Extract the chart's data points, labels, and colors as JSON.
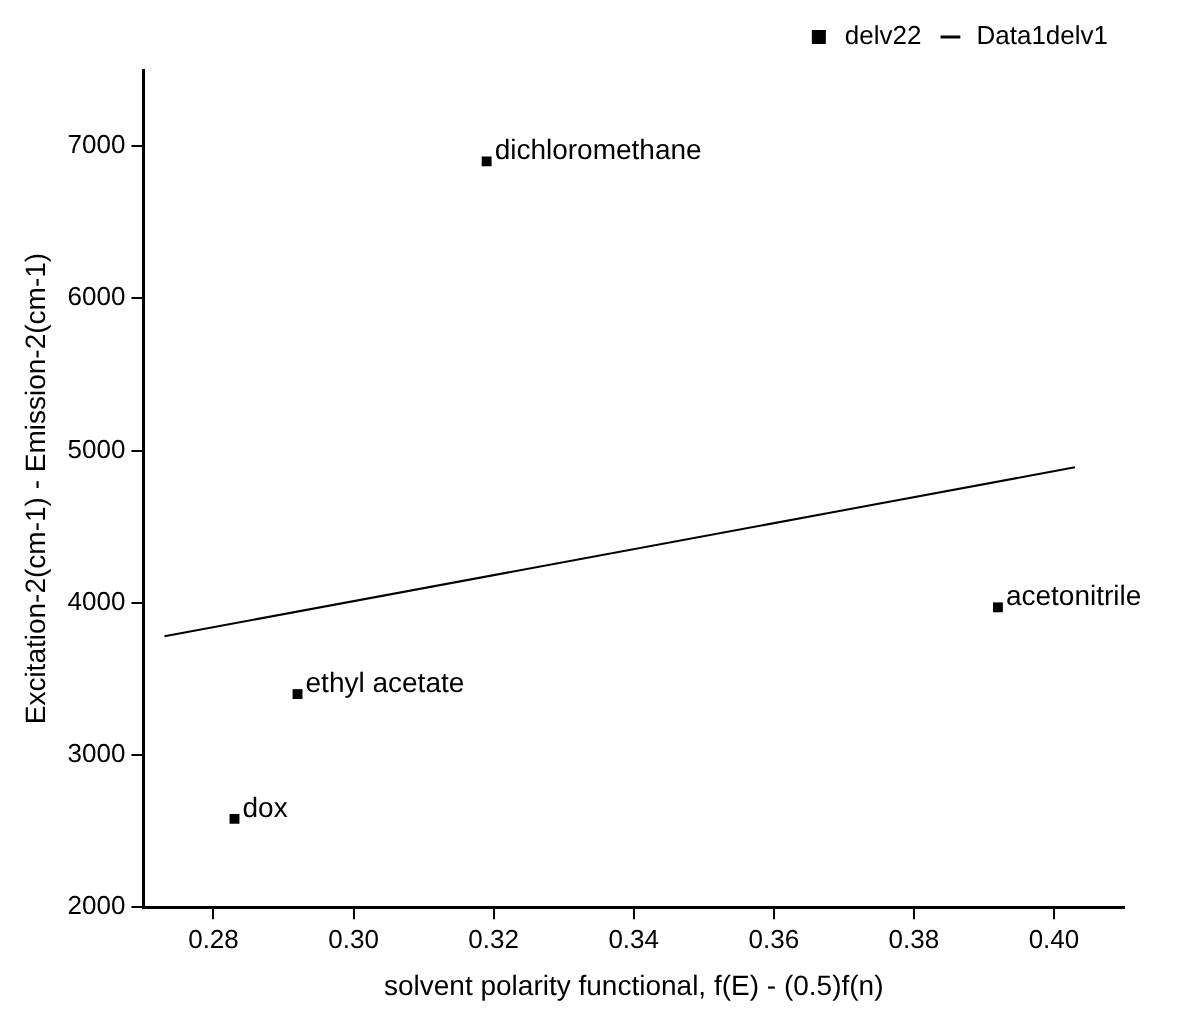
{
  "chart_data": {
    "type": "scatter",
    "xlabel": "solvent polarity functional, f(E) - (0.5)f(n)",
    "ylabel": "Excitation-2(cm-1) - Emission-2(cm-1)",
    "xlim": [
      0.27,
      0.41
    ],
    "xticks": [
      0.28,
      {
        "value": 0.3,
        "label": "0.30"
      },
      0.32,
      0.34,
      0.36,
      0.38,
      {
        "value": 0.4,
        "label": "0.40"
      }
    ],
    "ylim": [
      2000,
      7500
    ],
    "yticks": [
      2000,
      3000,
      4000,
      5000,
      6000,
      7000
    ],
    "grid": false,
    "legend": "top right",
    "series": [
      {
        "name": "delv22",
        "marker": "square",
        "color": "#000000",
        "x": [
          0.283,
          0.292,
          0.319,
          0.392
        ],
        "values": [
          2580,
          3400,
          6900,
          3970
        ]
      },
      {
        "name": "Data1delv1",
        "type": "line",
        "marker": "none",
        "line_style": "solid",
        "color": "#000000",
        "x": [
          0.273,
          0.403
        ],
        "values": [
          3780,
          4890
        ]
      }
    ],
    "annotations": [
      {
        "text": "dox",
        "x": 0.283,
        "y": 2580
      },
      {
        "text": "ethyl acetate",
        "x": 0.292,
        "y": 3400
      },
      {
        "text": "dichloromethane",
        "x": 0.319,
        "y": 6900
      },
      {
        "text": "acetonitrile",
        "x": 0.392,
        "y": 3970
      }
    ]
  }
}
